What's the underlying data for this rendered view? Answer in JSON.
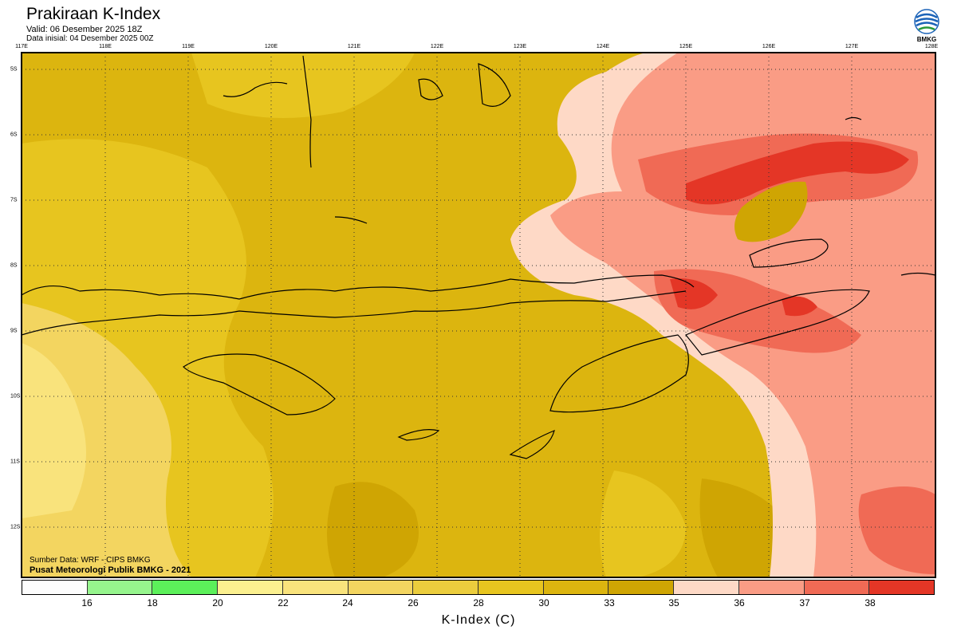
{
  "header": {
    "title": "Prakiraan K-Index",
    "valid": "Valid: 06 Desember 2025 18Z",
    "init": "Data inisial: 04 Desember 2025 00Z"
  },
  "logo": {
    "text": "BMKG",
    "icon": "bmkg-logo-icon"
  },
  "map": {
    "lon_labels": [
      "117E",
      "118E",
      "119E",
      "120E",
      "121E",
      "122E",
      "123E",
      "124E",
      "125E",
      "126E",
      "127E",
      "128E"
    ],
    "lat_labels": [
      "5S",
      "6S",
      "7S",
      "8S",
      "9S",
      "10S",
      "11S",
      "12S"
    ],
    "lon_range": [
      117,
      128
    ],
    "lat_range": [
      -4.8,
      -12.8
    ],
    "gridlines": "dotted",
    "variable": "K-Index"
  },
  "source": {
    "line1": "Sumber Data: WRF - CIPS BMKG",
    "line2": "Pusat Meteorologi Publik BMKG - 2021"
  },
  "legend": {
    "ticks": [
      "16",
      "18",
      "20",
      "22",
      "24",
      "26",
      "28",
      "30",
      "33",
      "35",
      "36",
      "37",
      "38"
    ],
    "colors": [
      "#fdfdfd",
      "#96f58d",
      "#5cf05a",
      "#fbf08f",
      "#f9e37c",
      "#f3d560",
      "#ebcd3d",
      "#e7c51f",
      "#dcb50f",
      "#cfa503",
      "#fed9c6",
      "#fa9c85",
      "#f06a55",
      "#e43626"
    ],
    "unit": "K-Index (C)"
  }
}
